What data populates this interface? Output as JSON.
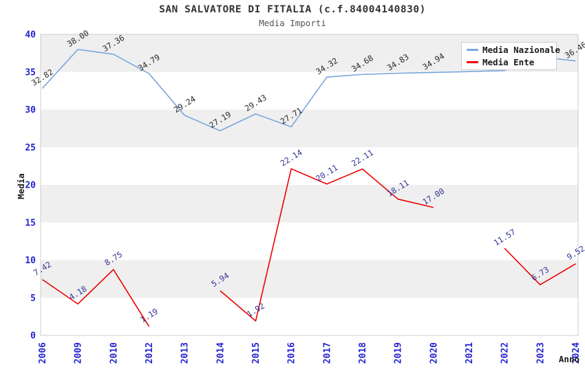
{
  "chart_data": {
    "type": "line",
    "title": "SAN SALVATORE DI FITALIA (c.f.84004140830)",
    "subtitle": "Media Importi",
    "xlabel": "Anno",
    "ylabel": "Media",
    "ylim": [
      0,
      40
    ],
    "ytick_step": 5,
    "grid": "alternating-bands",
    "band_colors": [
      "#ffffff",
      "#efefef"
    ],
    "plot_border_color": "#cccccc",
    "axis_tick_label_color": "#2424d0",
    "axis_title_color": "#1a1a1a",
    "legend_position": "top-right",
    "categories": [
      "2006",
      "2009",
      "2010",
      "2012",
      "2013",
      "2014",
      "2015",
      "2016",
      "2017",
      "2018",
      "2019",
      "2020",
      "2021",
      "2022",
      "2023",
      "2024"
    ],
    "series": [
      {
        "name": "Media Nazionale",
        "color": "#7aa6dc",
        "label_color": "#2a2a2a",
        "values": [
          32.82,
          38.0,
          37.36,
          34.79,
          29.24,
          27.19,
          29.43,
          27.71,
          34.32,
          34.68,
          34.83,
          34.94,
          35.05,
          35.2,
          37.0,
          36.46
        ],
        "labels": [
          "32.82",
          "38.00",
          "37.36",
          "34.79",
          "29.24",
          "27.19",
          "29.43",
          "27.71",
          "34.32",
          "34.68",
          "34.83",
          "34.94",
          null,
          null,
          null,
          "36.46"
        ]
      },
      {
        "name": "Media Ente",
        "color": "#ee0000",
        "label_color": "#333399",
        "values": [
          7.42,
          4.18,
          8.75,
          1.19,
          null,
          5.94,
          1.92,
          22.14,
          20.11,
          22.11,
          18.11,
          17.0,
          null,
          11.57,
          6.73,
          9.52
        ],
        "labels": [
          "7.42",
          "4.18",
          "8.75",
          "1.19",
          null,
          "5.94",
          "1.92",
          "22.14",
          "20.11",
          "22.11",
          "18.11",
          "17.00",
          null,
          "11.57",
          "6.73",
          "9.52"
        ]
      }
    ]
  },
  "legend": {
    "items": [
      {
        "label": "Media Nazionale",
        "color": "#7aa6dc"
      },
      {
        "label": "Media Ente",
        "color": "#ee0000"
      }
    ]
  }
}
